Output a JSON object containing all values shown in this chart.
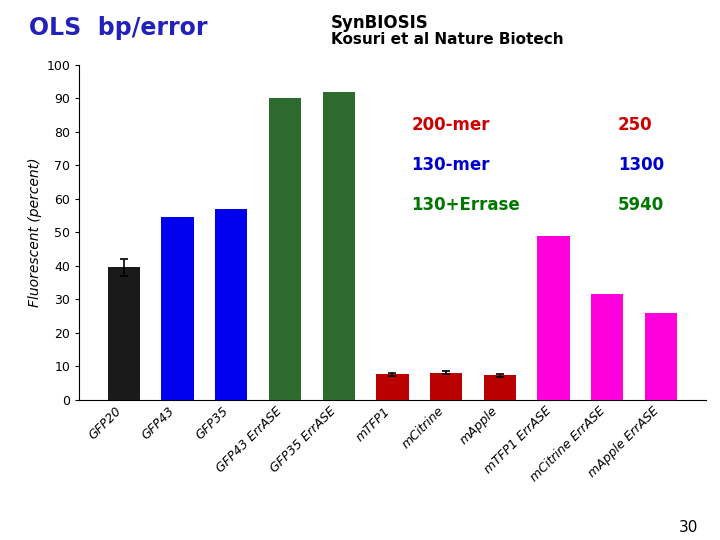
{
  "categories": [
    "GFP20",
    "GFP43",
    "GFP35",
    "GFP43 ErrASE",
    "GFP35 ErrASE",
    "mTFP1",
    "mCitrine",
    "mApple",
    "mTFP1 ErrASE",
    "mCitrine ErrASE",
    "mApple ErrASE"
  ],
  "values": [
    39.5,
    54.5,
    57.0,
    90.0,
    92.0,
    7.5,
    8.0,
    7.2,
    49.0,
    31.5,
    26.0
  ],
  "colors": [
    "#1a1a1a",
    "#0000ee",
    "#0000ee",
    "#2d6a2d",
    "#2d6a2d",
    "#bb0000",
    "#bb0000",
    "#bb0000",
    "#ff00dd",
    "#ff00dd",
    "#ff00dd"
  ],
  "error_bars": [
    {
      "index": 0,
      "yerr": 2.5
    },
    {
      "index": 5,
      "yerr": 0.5
    },
    {
      "index": 6,
      "yerr": 0.5
    },
    {
      "index": 7,
      "yerr": 0.5
    }
  ],
  "ylabel": "Fluorescent (percent)",
  "ylim": [
    0,
    100
  ],
  "yticks": [
    0,
    10,
    20,
    30,
    40,
    50,
    60,
    70,
    80,
    90,
    100
  ],
  "title_left": "OLS  bp/error",
  "title_left_color": "#2222bb",
  "title_right_line1": "SynBIOSIS",
  "title_right_line2": "Kosuri et al Nature Biotech",
  "legend_items": [
    {
      "label": "200-mer",
      "value": "250",
      "color": "#cc0000"
    },
    {
      "label": "130-mer",
      "value": "1300",
      "color": "#0000cc"
    },
    {
      "label": "130+Errase",
      "value": "5940",
      "color": "#007700"
    }
  ],
  "slide_number": "30",
  "background_color": "#ffffff",
  "axes_bg": "#ffffff"
}
